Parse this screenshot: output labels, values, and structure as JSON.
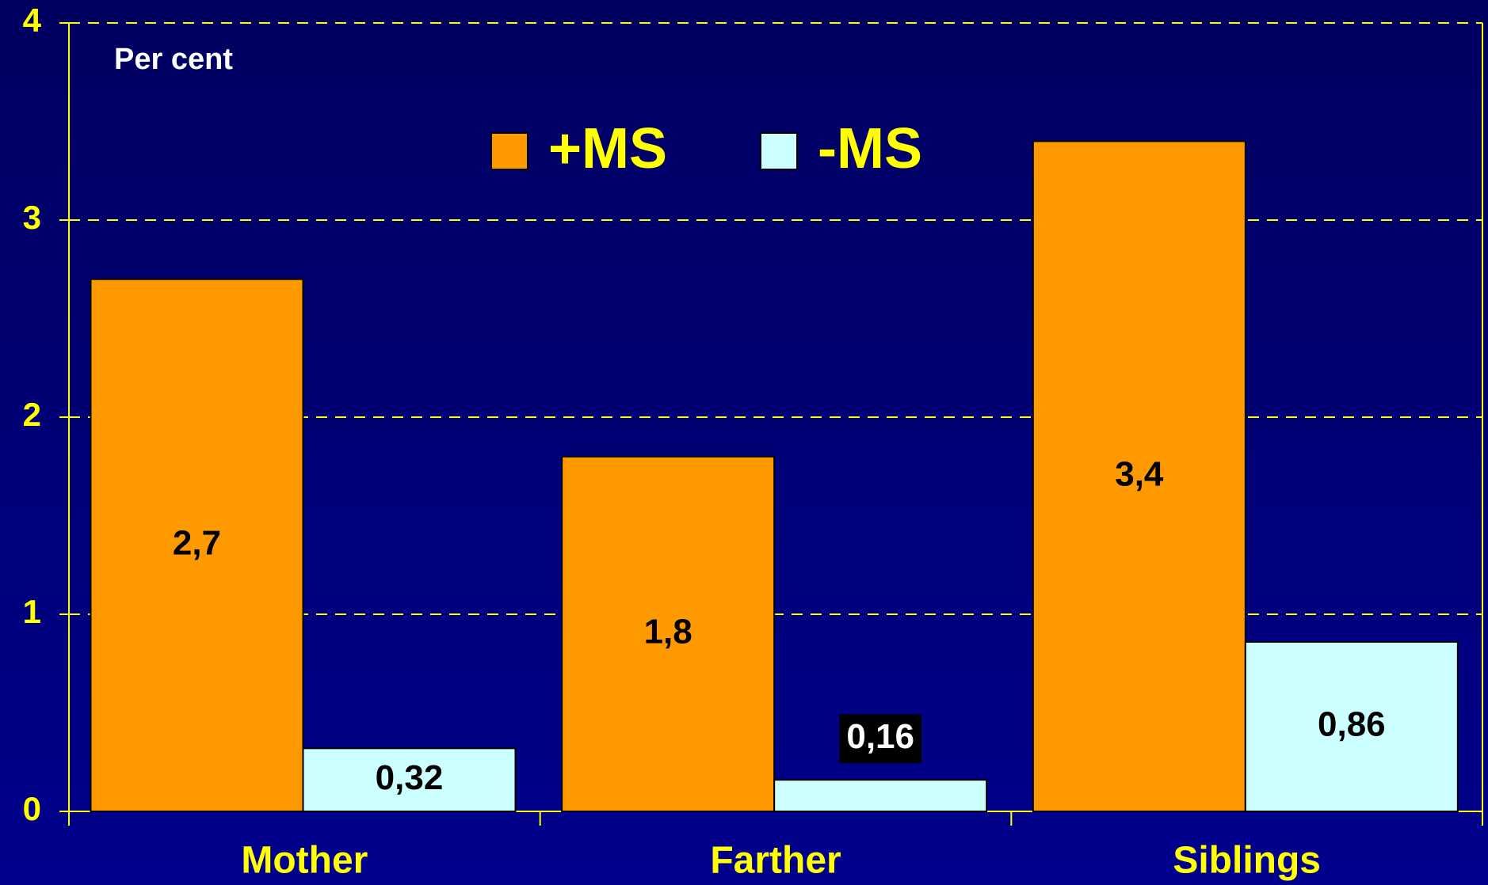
{
  "chart_data": {
    "type": "bar",
    "annotation": "Per cent",
    "categories": [
      "Mother",
      "Farther",
      "Siblings"
    ],
    "series": [
      {
        "name": "+MS",
        "color": "#ff9900",
        "values": [
          2.7,
          1.8,
          3.4
        ],
        "value_labels": [
          "2,7",
          "1,8",
          "3,4"
        ]
      },
      {
        "name": "-MS",
        "color": "#ccffff",
        "values": [
          0.32,
          0.16,
          0.86
        ],
        "value_labels": [
          "0,32",
          "0,16",
          "0,86"
        ]
      }
    ],
    "ylim": [
      0,
      4
    ],
    "yticks": [
      0,
      1,
      2,
      3,
      4
    ],
    "grid": true,
    "legend": "top"
  }
}
